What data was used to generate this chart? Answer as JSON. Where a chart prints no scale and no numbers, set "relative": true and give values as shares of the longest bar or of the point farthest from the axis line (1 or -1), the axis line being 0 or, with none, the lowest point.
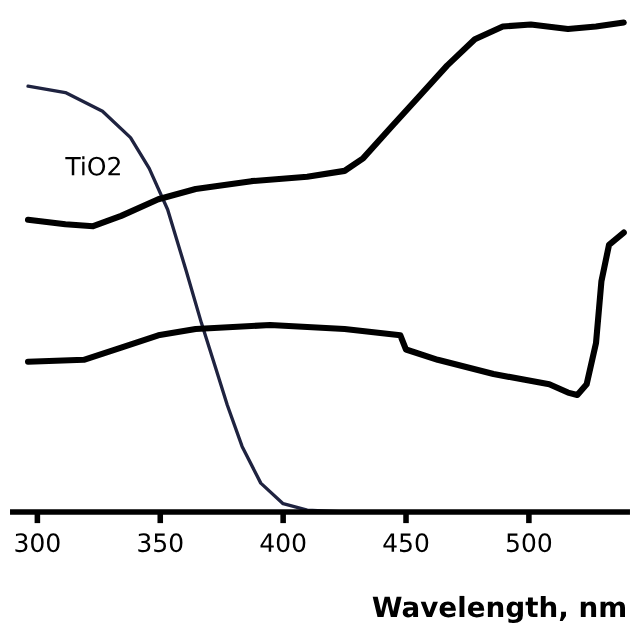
{
  "chart_data": {
    "type": "line",
    "relative": true,
    "xlabel": "Wavelength, nm",
    "xlim": [
      290,
      540
    ],
    "xticks": [
      300,
      350,
      400,
      450,
      500
    ],
    "tick_labels": "x",
    "grid": false,
    "series": [
      {
        "name": "TiO2",
        "color": "#1f2340",
        "x": [
          296.2,
          311.4,
          326.5,
          337.9,
          345.5,
          353,
          360.6,
          366.7,
          372,
          377.3,
          383.3,
          390.9,
          400,
          409.8,
          425,
          447.7
        ],
        "values": [
          0.87,
          0.857,
          0.819,
          0.765,
          0.702,
          0.618,
          0.492,
          0.387,
          0.303,
          0.218,
          0.134,
          0.059,
          0.017,
          0.004,
          0,
          0
        ]
      },
      {
        "color": "#000000",
        "x": [
          296.2,
          311.4,
          322.7,
          334.1,
          349.2,
          364.4,
          387.1,
          409.8,
          425,
          432.6,
          443.9,
          455.3,
          466.7,
          478,
          489.4,
          500.8,
          515.9,
          527.3,
          538.6
        ],
        "values": [
          0.597,
          0.588,
          0.584,
          0.605,
          0.639,
          0.66,
          0.676,
          0.685,
          0.697,
          0.723,
          0.786,
          0.849,
          0.912,
          0.966,
          0.992,
          0.996,
          0.987,
          0.992,
          1
        ]
      },
      {
        "color": "#000000",
        "x": [
          296.2,
          318.9,
          334.1,
          349.2,
          364.4,
          394.7,
          425,
          447.7,
          450,
          462.9,
          485.6,
          508.3,
          515.9,
          519.7,
          523.5,
          527.3,
          529.5,
          532.6,
          538.6
        ],
        "values": [
          0.307,
          0.311,
          0.336,
          0.361,
          0.374,
          0.382,
          0.374,
          0.361,
          0.332,
          0.311,
          0.282,
          0.261,
          0.244,
          0.239,
          0.261,
          0.345,
          0.471,
          0.546,
          0.571
        ]
      }
    ]
  }
}
